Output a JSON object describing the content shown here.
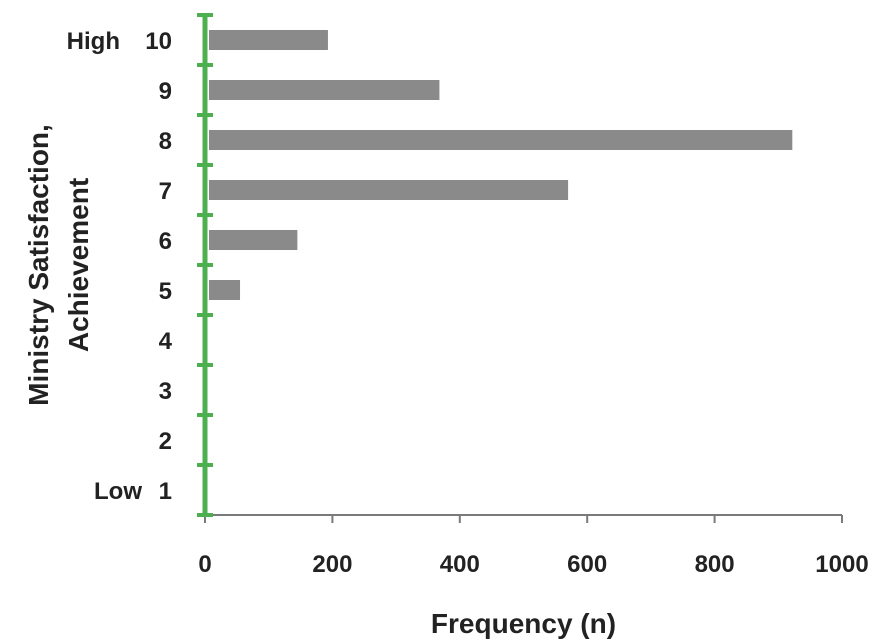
{
  "chart_data": {
    "type": "bar",
    "orientation": "horizontal",
    "categories": [
      "1",
      "2",
      "3",
      "4",
      "5",
      "6",
      "7",
      "8",
      "9",
      "10"
    ],
    "category_annotations": {
      "1": "Low",
      "10": "High"
    },
    "values": [
      0,
      0,
      0,
      0,
      55,
      145,
      570,
      922,
      368,
      193
    ],
    "xlabel": "Frequency (n)",
    "ylabel_lines": [
      "Ministry Satisfaction,",
      "Achievement"
    ],
    "xlim": [
      0,
      1000
    ],
    "xticks": [
      0,
      200,
      400,
      600,
      800,
      1000
    ],
    "grid": false,
    "legend": "none"
  },
  "colors": {
    "bar": "#8a8a8a",
    "y_axis": "#4caf50",
    "x_axis": "#7a7a7a",
    "text": "#222222"
  }
}
